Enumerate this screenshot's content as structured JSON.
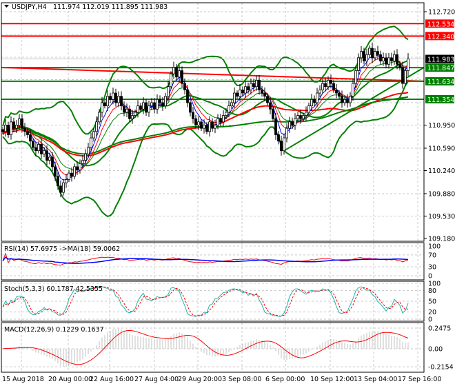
{
  "header": {
    "symbol": "USDJPY,H4",
    "ohlc": "111.974 112.019 111.895 111.983"
  },
  "colors": {
    "bull": "#000000",
    "bear": "#000000",
    "bollinger": "#008000",
    "support": "#008000",
    "resistance": "#ff0000",
    "rsi": "#ff0000",
    "rsi_ma": "#0000ff",
    "stoch_main": "#20b2aa",
    "stoch_signal": "#ff0000",
    "macd_hist": "#c0c0c0",
    "macd_signal": "#ff0000",
    "price_label_bg": "#000000"
  },
  "chart_data": [
    {
      "type": "candlestick",
      "title": "USDJPY,H4",
      "ylim": [
        109.18,
        112.72
      ],
      "price_ticks": [
        "112.720",
        "110.950",
        "110.590",
        "110.240",
        "109.880",
        "109.530",
        "109.180"
      ],
      "time_ticks": [
        "15 Aug 2018",
        "20 Aug 00:00",
        "22 Aug 16:00",
        "27 Aug 04:00",
        "29 Aug 20:00",
        "3 Sep 08:00",
        "6 Sep 00:00",
        "10 Sep 12:00",
        "13 Sep 04:00",
        "17 Sep 16:00"
      ],
      "current_price": {
        "value": 111.983,
        "label": "111.983"
      },
      "levels": [
        {
          "value": 112.534,
          "label": "112.534",
          "color": "#ff0000"
        },
        {
          "value": 112.34,
          "label": "112.340",
          "color": "#ff0000"
        },
        {
          "value": 111.847,
          "label": "111.847",
          "color": "#008000"
        },
        {
          "value": 111.634,
          "label": "111.634",
          "color": "#008000"
        },
        {
          "value": 111.354,
          "label": "111.354",
          "color": "#008000"
        }
      ],
      "closes": [
        110.85,
        110.95,
        110.8,
        111.0,
        110.9,
        110.95,
        111.05,
        110.9,
        110.85,
        110.8,
        110.7,
        110.6,
        110.55,
        110.65,
        110.5,
        110.55,
        110.4,
        110.45,
        110.3,
        110.15,
        110.0,
        109.9,
        110.05,
        110.1,
        110.2,
        110.15,
        110.3,
        110.25,
        110.35,
        110.4,
        110.5,
        110.6,
        110.75,
        110.85,
        111.0,
        111.15,
        111.3,
        111.25,
        111.4,
        111.35,
        111.45,
        111.3,
        111.4,
        111.25,
        111.15,
        111.2,
        111.05,
        111.1,
        111.15,
        111.25,
        111.2,
        111.3,
        111.15,
        111.25,
        111.3,
        111.2,
        111.35,
        111.3,
        111.25,
        111.4,
        111.55,
        111.75,
        111.85,
        111.7,
        111.8,
        111.6,
        111.5,
        111.3,
        111.15,
        111.05,
        110.95,
        111.0,
        110.9,
        110.95,
        110.85,
        111.0,
        110.9,
        110.95,
        111.05,
        111.0,
        111.1,
        111.15,
        111.25,
        111.3,
        111.45,
        111.4,
        111.5,
        111.45,
        111.55,
        111.5,
        111.6,
        111.55,
        111.65,
        111.5,
        111.45,
        111.4,
        111.3,
        111.2,
        111.05,
        110.8,
        110.7,
        110.55,
        110.75,
        110.9,
        111.0,
        110.95,
        111.05,
        111.1,
        111.05,
        111.1,
        111.15,
        111.25,
        111.35,
        111.3,
        111.45,
        111.5,
        111.6,
        111.55,
        111.65,
        111.6,
        111.5,
        111.45,
        111.4,
        111.3,
        111.35,
        111.3,
        111.4,
        111.6,
        111.8,
        112.0,
        112.1,
        111.95,
        112.05,
        112.15,
        112.0,
        112.1,
        112.05,
        111.95,
        112.0,
        111.9,
        112.0,
        111.95,
        112.05,
        111.9,
        111.85,
        111.6,
        111.8,
        111.983
      ]
    },
    {
      "type": "line",
      "title": "RSI(14) 57.6975  ->MA(18) 59.0062",
      "ylim": [
        0,
        100
      ],
      "ticks": [
        "100",
        "70",
        "30",
        "0"
      ]
    },
    {
      "type": "line",
      "title": "Stoch(5,3,3) 60.1787 42.5355",
      "ylim": [
        0,
        100
      ],
      "ticks": [
        "100",
        "80",
        "50",
        "20",
        "0"
      ]
    },
    {
      "type": "bar",
      "title": "MACD(12,26,9) 0.1229 0.1637",
      "ticks": [
        "0.2475",
        "0.00",
        "-0.2154"
      ],
      "ylim": [
        -0.2154,
        0.2475
      ]
    }
  ]
}
